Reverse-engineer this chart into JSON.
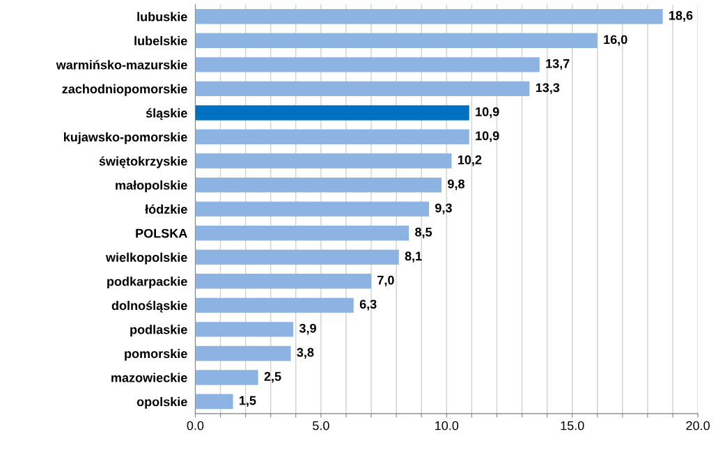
{
  "chart_data": {
    "type": "bar",
    "orientation": "horizontal",
    "categories": [
      "lubuskie",
      "lubelskie",
      "warmińsko-mazurskie",
      "zachodniopomorskie",
      "śląskie",
      "kujawsko-pomorskie",
      "świętokrzyskie",
      "małopolskie",
      "łódzkie",
      "POLSKA",
      "wielkopolskie",
      "podkarpackie",
      "dolnośląskie",
      "podlaskie",
      "pomorskie",
      "mazowieckie",
      "opolskie"
    ],
    "values": [
      18.6,
      16.0,
      13.7,
      13.3,
      10.9,
      10.9,
      10.2,
      9.8,
      9.3,
      8.5,
      8.1,
      7.0,
      6.3,
      3.9,
      3.8,
      2.5,
      1.5
    ],
    "value_labels": [
      "18,6",
      "16,0",
      "13,7",
      "13,3",
      "10,9",
      "10,9",
      "10,2",
      "9,8",
      "9,3",
      "8,5",
      "8,1",
      "7,0",
      "6,3",
      "3,9",
      "3,8",
      "2,5",
      "1,5"
    ],
    "colors": [
      "#8db3e2",
      "#8db3e2",
      "#8db3e2",
      "#8db3e2",
      "#0070c0",
      "#8db3e2",
      "#8db3e2",
      "#8db3e2",
      "#8db3e2",
      "#8db3e2",
      "#8db3e2",
      "#8db3e2",
      "#8db3e2",
      "#8db3e2",
      "#8db3e2",
      "#8db3e2",
      "#8db3e2"
    ],
    "xlim": [
      0,
      20
    ],
    "xticks": [
      {
        "value": 0,
        "label": "0.0"
      },
      {
        "value": 1,
        "label": null
      },
      {
        "value": 2,
        "label": null
      },
      {
        "value": 3,
        "label": null
      },
      {
        "value": 4,
        "label": null
      },
      {
        "value": 5,
        "label": "5.0"
      },
      {
        "value": 6,
        "label": null
      },
      {
        "value": 7,
        "label": null
      },
      {
        "value": 8,
        "label": null
      },
      {
        "value": 9,
        "label": null
      },
      {
        "value": 10,
        "label": "10.0"
      },
      {
        "value": 11,
        "label": null
      },
      {
        "value": 12,
        "label": null
      },
      {
        "value": 13,
        "label": null
      },
      {
        "value": 14,
        "label": null
      },
      {
        "value": 15,
        "label": "15.0"
      },
      {
        "value": 16,
        "label": null
      },
      {
        "value": 17,
        "label": null
      },
      {
        "value": 18,
        "label": null
      },
      {
        "value": 19,
        "label": null
      },
      {
        "value": 20,
        "label": "20.0"
      }
    ],
    "grid": "x"
  }
}
